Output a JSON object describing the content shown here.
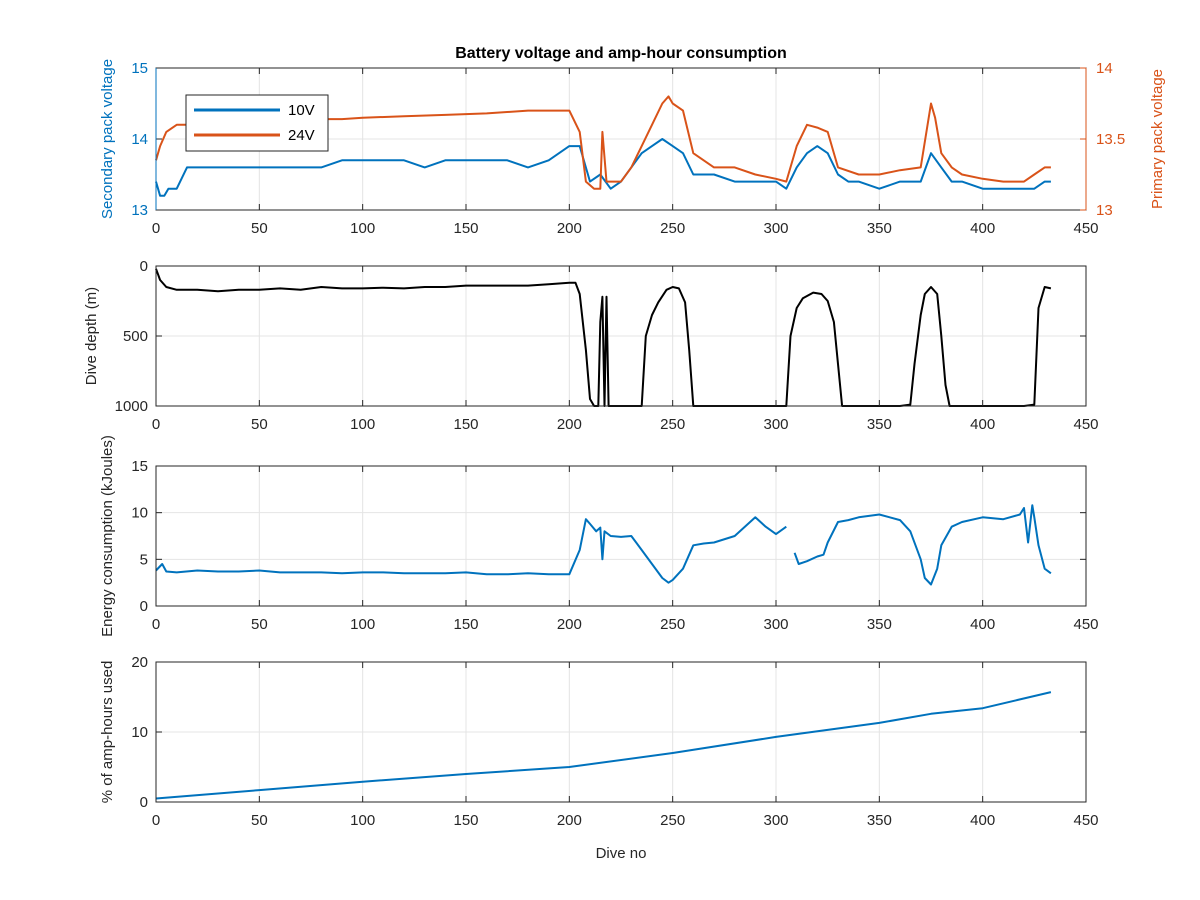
{
  "colors": {
    "secondary_voltage": "#0072BD",
    "primary_voltage": "#D95319",
    "depth": "#000000",
    "energy": "#0072BD",
    "amp_hours": "#0072BD",
    "grid": "#e4e4e4",
    "axis": "#262626"
  },
  "chart_data": [
    {
      "type": "line",
      "title": "Battery voltage and amp-hour consumption",
      "ylabel": "Secondary pack voltage",
      "ylabel_right": "Primary pack voltage",
      "xlim": [
        0,
        450
      ],
      "ylim": [
        13,
        15
      ],
      "ylim_right": [
        13,
        14
      ],
      "xticks": [
        0,
        50,
        100,
        150,
        200,
        250,
        300,
        350,
        400,
        450
      ],
      "yticks": [
        13,
        14,
        15
      ],
      "yticks_right": [
        13,
        13.5,
        14
      ],
      "grid": true,
      "legend": {
        "position": "top-left",
        "entries": [
          "10V",
          "24V"
        ]
      },
      "series": [
        {
          "name": "10V",
          "axis": "left",
          "x": [
            0,
            2,
            4,
            6,
            10,
            15,
            20,
            30,
            40,
            50,
            60,
            70,
            80,
            90,
            100,
            110,
            120,
            130,
            140,
            150,
            160,
            170,
            180,
            190,
            200,
            205,
            210,
            215,
            220,
            225,
            230,
            235,
            240,
            245,
            250,
            255,
            260,
            265,
            270,
            280,
            290,
            300,
            305,
            310,
            315,
            320,
            325,
            330,
            335,
            340,
            350,
            360,
            370,
            375,
            380,
            385,
            390,
            400,
            410,
            420,
            425,
            430,
            433
          ],
          "y": [
            13.4,
            13.2,
            13.2,
            13.3,
            13.3,
            13.6,
            13.6,
            13.6,
            13.6,
            13.6,
            13.6,
            13.6,
            13.6,
            13.7,
            13.7,
            13.7,
            13.7,
            13.6,
            13.7,
            13.7,
            13.7,
            13.7,
            13.6,
            13.7,
            13.9,
            13.9,
            13.4,
            13.5,
            13.3,
            13.4,
            13.6,
            13.8,
            13.9,
            14.0,
            13.9,
            13.8,
            13.5,
            13.5,
            13.5,
            13.4,
            13.4,
            13.4,
            13.3,
            13.6,
            13.8,
            13.9,
            13.8,
            13.5,
            13.4,
            13.4,
            13.3,
            13.4,
            13.4,
            13.8,
            13.6,
            13.4,
            13.4,
            13.3,
            13.3,
            13.3,
            13.3,
            13.4,
            13.4
          ]
        },
        {
          "name": "24V",
          "axis": "right",
          "x": [
            0,
            2,
            5,
            10,
            15,
            20,
            30,
            40,
            50,
            70,
            90,
            100,
            120,
            140,
            160,
            180,
            200,
            205,
            208,
            212,
            215,
            216,
            218,
            222,
            225,
            230,
            235,
            240,
            245,
            248,
            250,
            255,
            260,
            270,
            280,
            290,
            300,
            305,
            310,
            315,
            320,
            325,
            330,
            340,
            350,
            360,
            370,
            375,
            377,
            380,
            385,
            390,
            400,
            410,
            420,
            425,
            430,
            433
          ],
          "y": [
            13.35,
            13.45,
            13.55,
            13.6,
            13.6,
            13.62,
            13.63,
            13.63,
            13.64,
            13.64,
            13.64,
            13.65,
            13.66,
            13.67,
            13.68,
            13.7,
            13.7,
            13.55,
            13.2,
            13.15,
            13.15,
            13.55,
            13.2,
            13.2,
            13.2,
            13.3,
            13.45,
            13.6,
            13.75,
            13.8,
            13.75,
            13.7,
            13.4,
            13.3,
            13.3,
            13.25,
            13.22,
            13.2,
            13.45,
            13.6,
            13.58,
            13.55,
            13.3,
            13.25,
            13.25,
            13.28,
            13.3,
            13.75,
            13.65,
            13.4,
            13.3,
            13.25,
            13.22,
            13.2,
            13.2,
            13.25,
            13.3,
            13.3
          ]
        }
      ]
    },
    {
      "type": "line",
      "ylabel": "Dive depth (m)",
      "xlim": [
        0,
        450
      ],
      "ylim": [
        0,
        1000
      ],
      "y_reversed": true,
      "xticks": [
        0,
        50,
        100,
        150,
        200,
        250,
        300,
        350,
        400,
        450
      ],
      "yticks": [
        0,
        500,
        1000
      ],
      "grid": true,
      "series": [
        {
          "x": [
            0,
            2,
            5,
            10,
            20,
            30,
            40,
            50,
            60,
            70,
            80,
            90,
            100,
            110,
            120,
            130,
            140,
            150,
            160,
            170,
            180,
            190,
            200,
            203,
            205,
            208,
            210,
            212,
            214,
            215,
            216,
            217,
            218,
            219,
            220,
            230,
            235,
            237,
            240,
            243,
            247,
            250,
            253,
            256,
            258,
            260,
            262,
            265,
            280,
            300,
            305,
            307,
            310,
            313,
            318,
            322,
            325,
            328,
            330,
            332,
            335,
            340,
            360,
            365,
            367,
            370,
            372,
            375,
            378,
            380,
            382,
            384,
            390,
            400,
            410,
            420,
            425,
            427,
            430,
            433
          ],
          "y": [
            20,
            100,
            150,
            170,
            170,
            180,
            170,
            170,
            160,
            170,
            150,
            160,
            160,
            155,
            160,
            150,
            150,
            140,
            140,
            140,
            140,
            130,
            120,
            120,
            200,
            600,
            950,
            1000,
            1000,
            400,
            220,
            1000,
            220,
            1000,
            1000,
            1000,
            1000,
            500,
            350,
            260,
            170,
            150,
            160,
            260,
            600,
            1000,
            1000,
            1000,
            1000,
            1000,
            1000,
            500,
            300,
            230,
            190,
            200,
            250,
            400,
            700,
            1000,
            1000,
            1000,
            1000,
            990,
            700,
            350,
            200,
            150,
            200,
            500,
            850,
            1000,
            1000,
            1000,
            1000,
            1000,
            990,
            300,
            150,
            160
          ]
        }
      ]
    },
    {
      "type": "line",
      "ylabel": "Energy consumption (kJoules)",
      "xlim": [
        0,
        450
      ],
      "ylim": [
        0,
        15
      ],
      "xticks": [
        0,
        50,
        100,
        150,
        200,
        250,
        300,
        350,
        400,
        450
      ],
      "yticks": [
        0,
        5,
        10,
        15
      ],
      "grid": true,
      "series": [
        {
          "x": [
            0,
            3,
            5,
            10,
            20,
            30,
            40,
            50,
            60,
            70,
            80,
            90,
            100,
            110,
            120,
            130,
            140,
            150,
            160,
            170,
            180,
            190,
            200,
            205,
            208,
            210,
            213,
            215,
            216,
            217,
            220,
            225,
            230,
            235,
            240,
            245,
            248,
            250,
            255,
            260,
            265,
            270,
            280,
            290,
            295,
            300,
            305,
            306,
            307,
            309,
            311,
            315,
            320,
            323,
            325,
            330,
            335,
            340,
            350,
            360,
            365,
            370,
            372,
            375,
            378,
            380,
            385,
            390,
            400,
            410,
            418,
            420,
            422,
            424,
            425,
            427,
            430,
            433
          ],
          "y": [
            3.8,
            4.5,
            3.7,
            3.6,
            3.8,
            3.7,
            3.7,
            3.8,
            3.6,
            3.6,
            3.6,
            3.5,
            3.6,
            3.6,
            3.5,
            3.5,
            3.5,
            3.6,
            3.4,
            3.4,
            3.5,
            3.4,
            3.4,
            6.0,
            9.3,
            8.8,
            8.0,
            8.4,
            5.0,
            8.0,
            7.5,
            7.4,
            7.5,
            6.0,
            4.5,
            3.0,
            2.5,
            2.8,
            4.0,
            6.5,
            6.7,
            6.8,
            7.5,
            9.5,
            8.5,
            7.7,
            8.5,
            null,
            null,
            5.7,
            4.5,
            4.8,
            5.3,
            5.5,
            6.8,
            9.0,
            9.2,
            9.5,
            9.8,
            9.2,
            8.0,
            5.0,
            3.0,
            2.3,
            4.0,
            6.5,
            8.5,
            9.0,
            9.5,
            9.3,
            9.8,
            10.5,
            6.8,
            10.8,
            9.5,
            6.5,
            4.0,
            3.5
          ]
        }
      ]
    },
    {
      "type": "line",
      "ylabel": "% of amp-hours used",
      "xlabel": "Dive no",
      "xlim": [
        0,
        450
      ],
      "ylim": [
        0,
        20
      ],
      "xticks": [
        0,
        50,
        100,
        150,
        200,
        250,
        300,
        350,
        400,
        450
      ],
      "yticks": [
        0,
        10,
        20
      ],
      "grid": true,
      "series": [
        {
          "x": [
            0,
            50,
            100,
            150,
            200,
            250,
            300,
            350,
            375,
            400,
            433
          ],
          "y": [
            0.5,
            1.7,
            2.9,
            4.0,
            5.0,
            7.0,
            9.3,
            11.3,
            12.6,
            13.4,
            15.7
          ]
        }
      ]
    }
  ]
}
